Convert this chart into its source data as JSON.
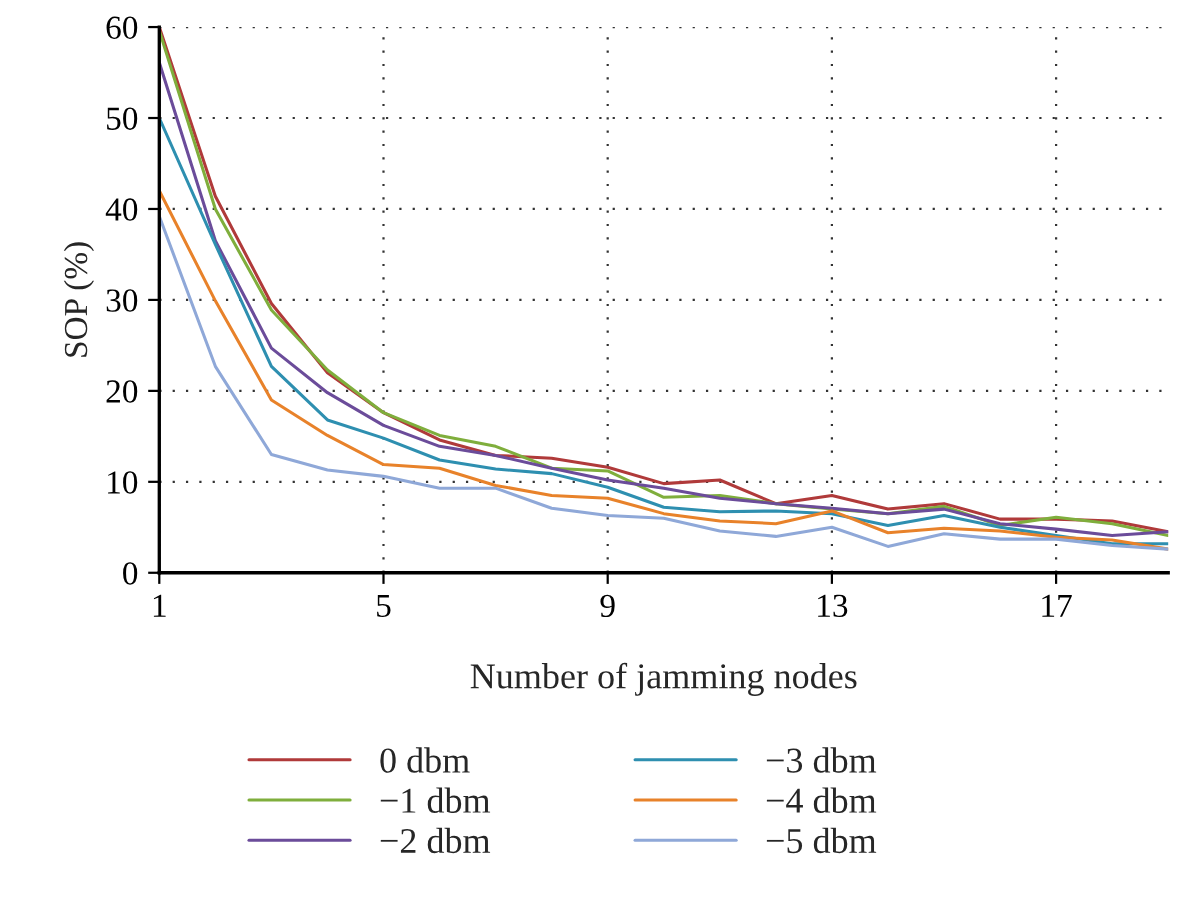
{
  "chart_data": {
    "type": "line",
    "xlabel": "Number of jamming nodes",
    "ylabel": "SOP (%)",
    "x": [
      1,
      2,
      3,
      4,
      5,
      6,
      7,
      8,
      9,
      10,
      11,
      12,
      13,
      14,
      15,
      16,
      17,
      18,
      19
    ],
    "xlim": [
      1,
      19
    ],
    "ylim": [
      0,
      60
    ],
    "xticks": [
      1,
      5,
      9,
      13,
      17
    ],
    "yticks": [
      0,
      10,
      20,
      30,
      40,
      50,
      60
    ],
    "grid": true,
    "legend": "bottom",
    "series": [
      {
        "name": "0 dbm",
        "color": "#b03a3a",
        "values": [
          60,
          41.4,
          29.6,
          22,
          17.6,
          14.6,
          12.9,
          12.6,
          11.6,
          9.8,
          10.2,
          7.6,
          8.5,
          7.0,
          7.6,
          5.9,
          5.9,
          5.7,
          4.5
        ]
      },
      {
        "name": "−1 dbm",
        "color": "#7fae3c",
        "values": [
          59.6,
          40,
          28.9,
          22.3,
          17.6,
          15.1,
          13.9,
          11.5,
          11.2,
          8.3,
          8.5,
          7.6,
          7.0,
          6.5,
          7.3,
          5.2,
          6.1,
          5.4,
          4.1
        ]
      },
      {
        "name": "−2 dbm",
        "color": "#6b4c9a",
        "values": [
          56.1,
          36.5,
          24.7,
          19.8,
          16.2,
          13.9,
          12.9,
          11.5,
          10.2,
          9.3,
          8.2,
          7.6,
          7.1,
          6.5,
          7.0,
          5.4,
          4.8,
          4.1,
          4.5
        ]
      },
      {
        "name": "−3 dbm",
        "color": "#2e8fb0",
        "values": [
          50,
          36.1,
          22.7,
          16.8,
          14.8,
          12.4,
          11.4,
          10.9,
          9.4,
          7.2,
          6.7,
          6.8,
          6.5,
          5.2,
          6.3,
          5.0,
          4.1,
          3.2,
          3.2
        ]
      },
      {
        "name": "−4 dbm",
        "color": "#e8822a",
        "values": [
          42,
          29.9,
          19,
          15.1,
          11.9,
          11.5,
          9.6,
          8.5,
          8.2,
          6.5,
          5.7,
          5.4,
          6.8,
          4.4,
          4.9,
          4.6,
          3.9,
          3.6,
          2.6
        ]
      },
      {
        "name": "−5 dbm",
        "color": "#8fa8d8",
        "values": [
          39.2,
          22.7,
          13,
          11.3,
          10.6,
          9.3,
          9.3,
          7.1,
          6.3,
          6.0,
          4.6,
          4.0,
          5.0,
          2.9,
          4.3,
          3.7,
          3.7,
          3.0,
          2.6
        ]
      }
    ]
  }
}
